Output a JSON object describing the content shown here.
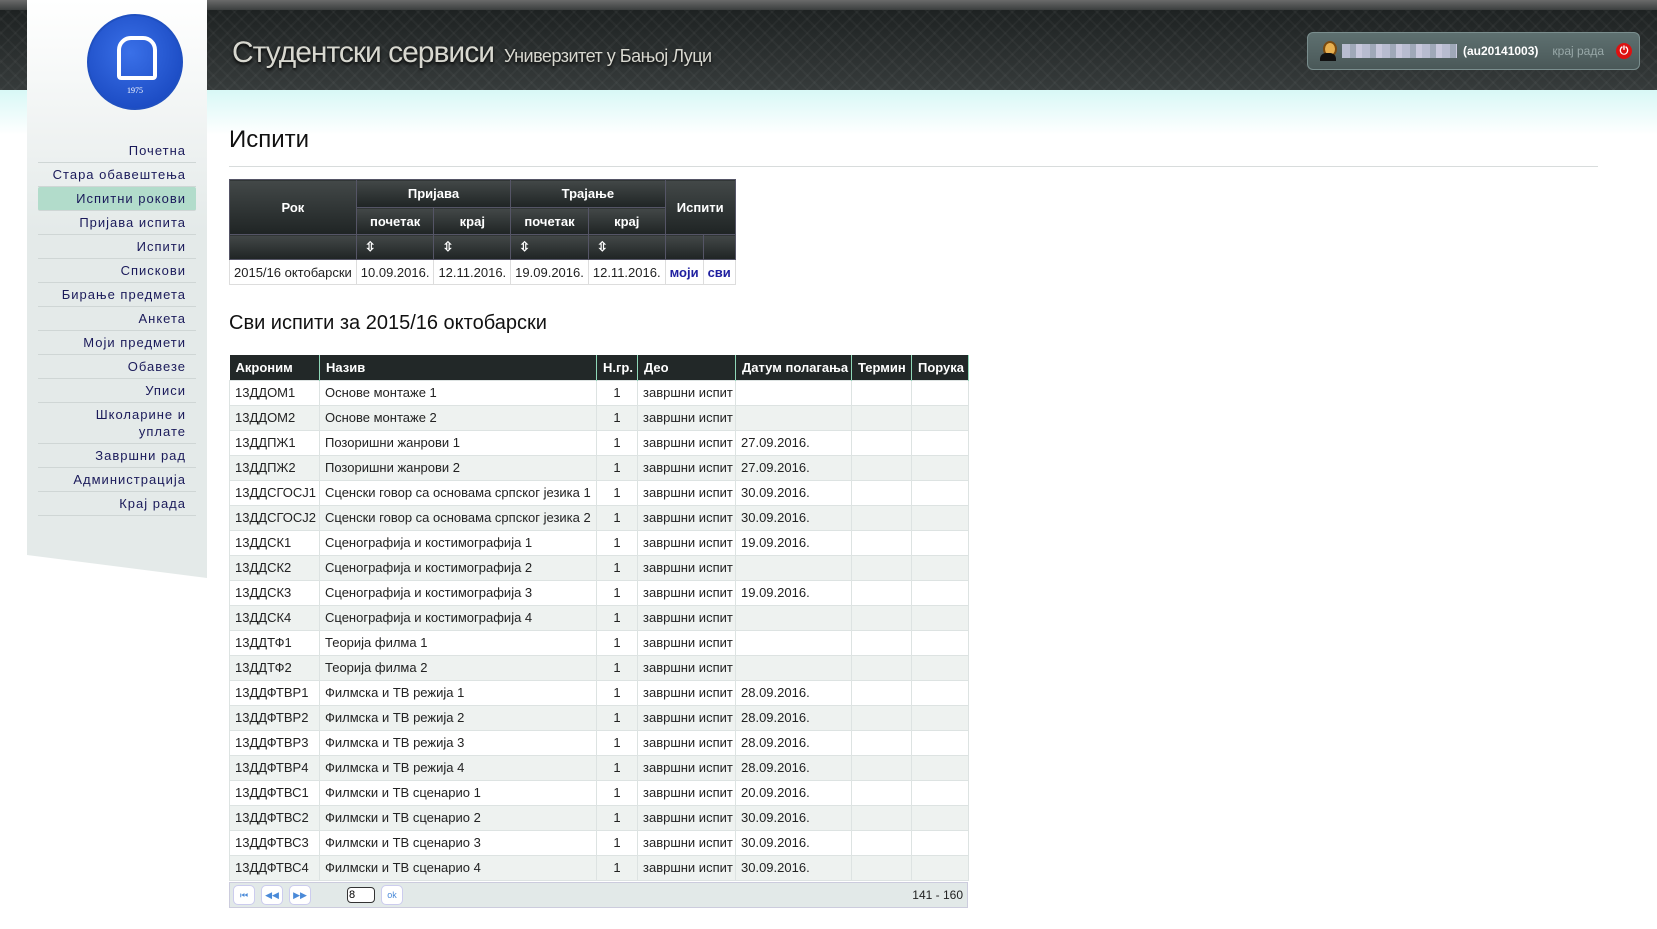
{
  "header": {
    "title": "Студентски сервиси",
    "subtitle": "Универзитет у Бањој Луци",
    "user_id": "(au20141003)",
    "logout": "крај рада"
  },
  "logo": {
    "year": "1975"
  },
  "sidebar": {
    "active": "Испитни рокови",
    "items": [
      "Почетна",
      "Стара обавештења",
      "Испитни рокови",
      "Пријава испита",
      "Испити",
      "Спискови",
      "Бирање предмета",
      "Анкета",
      "Моји предмети",
      "Обавезе",
      "Уписи",
      "Школарине и уплате",
      "Завршни рад",
      "Администрација",
      "Крај рада"
    ]
  },
  "page_title": "Испити",
  "rok_table": {
    "h_rok": "Рок",
    "h_prijava": "Пријава",
    "h_trajanje": "Трајање",
    "h_ispiti": "Испити",
    "h_pocetak": "почетак",
    "h_kraj": "крај",
    "sort_icon": "⇳",
    "row": {
      "rok": "2015/16 октобарски",
      "prijava_pocetak": "10.09.2016.",
      "prijava_kraj": "12.11.2016.",
      "trajanje_pocetak": "19.09.2016.",
      "trajanje_kraj": "12.11.2016.",
      "moji": "моји",
      "svi": "сви"
    }
  },
  "section_title": "Сви испити за 2015/16 октобарски",
  "exam_table": {
    "columns": [
      "Акроним",
      "Назив",
      "Н.гр.",
      "Део",
      "Датум полагања",
      "Термин",
      "Порука"
    ],
    "rows": [
      [
        "13ДДОМ1",
        "Основе монтаже 1",
        "1",
        "завршни испит",
        ""
      ],
      [
        "13ДДОМ2",
        "Основе монтаже 2",
        "1",
        "завршни испит",
        ""
      ],
      [
        "13ДДПЖ1",
        "Позоришни жанрови 1",
        "1",
        "завршни испит",
        "27.09.2016."
      ],
      [
        "13ДДПЖ2",
        "Позоришни жанрови 2",
        "1",
        "завршни испит",
        "27.09.2016."
      ],
      [
        "13ДДСГОСЈ1",
        "Сценски говор са основама српског језика 1",
        "1",
        "завршни испит",
        "30.09.2016."
      ],
      [
        "13ДДСГОСЈ2",
        "Сценски говор са основама српског језика 2",
        "1",
        "завршни испит",
        "30.09.2016."
      ],
      [
        "13ДДСК1",
        "Сценографија и костимографија 1",
        "1",
        "завршни испит",
        "19.09.2016."
      ],
      [
        "13ДДСК2",
        "Сценографија и костимографија 2",
        "1",
        "завршни испит",
        ""
      ],
      [
        "13ДДСК3",
        "Сценографија и костимографија 3",
        "1",
        "завршни испит",
        "19.09.2016."
      ],
      [
        "13ДДСК4",
        "Сценографија и костимографија 4",
        "1",
        "завршни испит",
        ""
      ],
      [
        "13ДДТФ1",
        "Теорија филма 1",
        "1",
        "завршни испит",
        ""
      ],
      [
        "13ДДТФ2",
        "Теорија филма 2",
        "1",
        "завршни испит",
        ""
      ],
      [
        "13ДДФТВР1",
        "Филмска и ТВ режија 1",
        "1",
        "завршни испит",
        "28.09.2016."
      ],
      [
        "13ДДФТВР2",
        "Филмска и ТВ режија 2",
        "1",
        "завршни испит",
        "28.09.2016."
      ],
      [
        "13ДДФТВР3",
        "Филмска и ТВ режија 3",
        "1",
        "завршни испит",
        "28.09.2016."
      ],
      [
        "13ДДФТВР4",
        "Филмска и ТВ режија 4",
        "1",
        "завршни испит",
        "28.09.2016."
      ],
      [
        "13ДДФТВС1",
        "Филмски и ТВ сценарио 1",
        "1",
        "завршни испит",
        "20.09.2016."
      ],
      [
        "13ДДФТВС2",
        "Филмски и ТВ сценарио 2",
        "1",
        "завршни испит",
        "30.09.2016."
      ],
      [
        "13ДДФТВС3",
        "Филмски и ТВ сценарио 3",
        "1",
        "завршни испит",
        "30.09.2016."
      ],
      [
        "13ДДФТВС4",
        "Филмски и ТВ сценарио 4",
        "1",
        "завршни испит",
        "30.09.2016."
      ]
    ]
  },
  "pager": {
    "first": "⏮",
    "prev": "◀◀",
    "next": "▶▶",
    "page": "8",
    "ok": "ok",
    "range": "141 - 160"
  }
}
